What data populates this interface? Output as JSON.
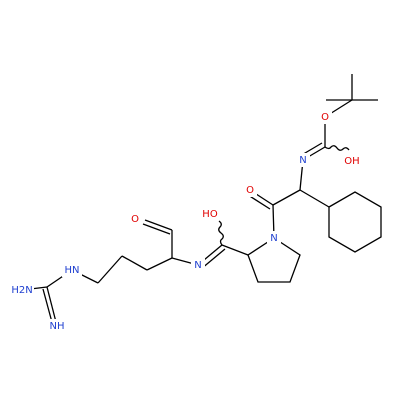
{
  "nodes": [
    {
      "label": "O"
    },
    {
      "label": "N"
    },
    {
      "label": "OH"
    },
    {
      "label": "O"
    },
    {
      "label": "HO"
    },
    {
      "label": "O"
    },
    {
      "label": "N"
    },
    {
      "label": "N"
    },
    {
      "label": "HN"
    },
    {
      "label": "H2N"
    },
    {
      "label": "NH"
    }
  ]
}
